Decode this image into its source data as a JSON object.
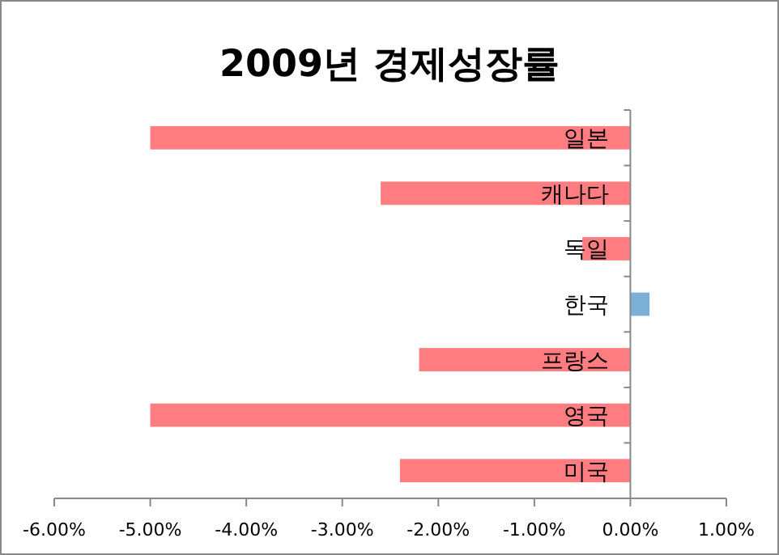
{
  "chart_data": {
    "type": "bar",
    "orientation": "horizontal",
    "title": "2009년 경제성장률",
    "categories": [
      "일본",
      "캐나다",
      "독일",
      "한국",
      "프랑스",
      "영국",
      "미국"
    ],
    "values": [
      -5.0,
      -2.6,
      -0.5,
      0.2,
      -2.2,
      -5.0,
      -2.4
    ],
    "colors": [
      "#ff7c80",
      "#ff7c80",
      "#ff7c80",
      "#7ab0d8",
      "#ff7c80",
      "#ff7c80",
      "#ff7c80"
    ],
    "xlim": [
      -6,
      1
    ],
    "xticks": [
      {
        "value": -6,
        "label": "-6.00%"
      },
      {
        "value": -5,
        "label": "-5.00%"
      },
      {
        "value": -4,
        "label": "-4.00%"
      },
      {
        "value": -3,
        "label": "-3.00%"
      },
      {
        "value": -2,
        "label": "-2.00%"
      },
      {
        "value": -1,
        "label": "-1.00%"
      },
      {
        "value": 0,
        "label": "0.00%"
      },
      {
        "value": 1,
        "label": "1.00%"
      }
    ]
  }
}
